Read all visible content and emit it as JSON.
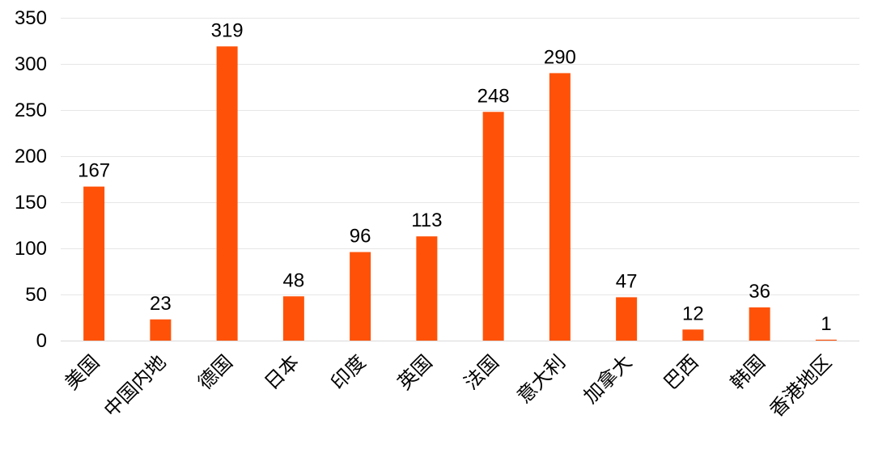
{
  "chart_data": {
    "type": "bar",
    "title": "",
    "xlabel": "",
    "ylabel": "",
    "categories": [
      "美国",
      "中国内地",
      "德国",
      "日本",
      "印度",
      "英国",
      "法国",
      "意大利",
      "加拿大",
      "巴西",
      "韩国",
      "香港地区"
    ],
    "values": [
      167,
      23,
      319,
      48,
      96,
      113,
      248,
      290,
      47,
      12,
      36,
      1
    ],
    "data_labels": [
      "167",
      "23",
      "319",
      "48",
      "96",
      "113",
      "248",
      "290",
      "47",
      "12",
      "36",
      "1"
    ],
    "ylim": [
      0,
      350
    ],
    "yticks": [
      0,
      50,
      100,
      150,
      200,
      250,
      300,
      350
    ],
    "ytick_labels": [
      "0",
      "50",
      "100",
      "150",
      "200",
      "250",
      "300",
      "350"
    ],
    "grid": true,
    "legend": "none",
    "bar_color": "#FF5208"
  }
}
